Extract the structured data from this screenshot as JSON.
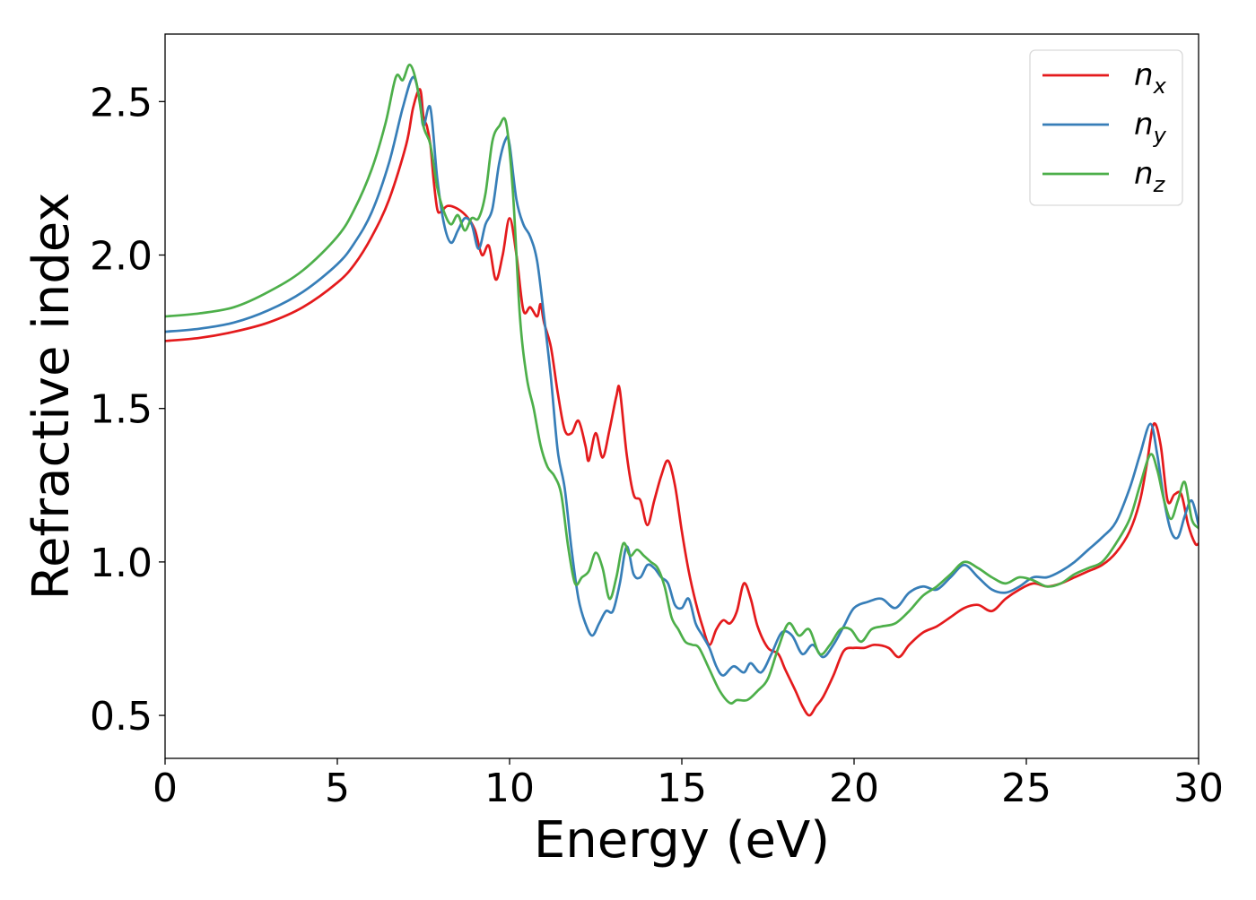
{
  "chart_data": {
    "type": "line",
    "title": "",
    "xlabel": "Energy (eV)",
    "ylabel": "Refractive index",
    "xlim": [
      0,
      30
    ],
    "ylim": [
      0.36,
      2.72
    ],
    "xticks": [
      0,
      5,
      10,
      15,
      20,
      25,
      30
    ],
    "yticks": [
      0.5,
      1.0,
      1.5,
      2.0,
      2.5
    ],
    "xtick_labels": [
      "0",
      "5",
      "10",
      "15",
      "20",
      "25",
      "30"
    ],
    "ytick_labels": [
      "0.5",
      "1.0",
      "1.5",
      "2.0",
      "2.5"
    ],
    "grid": false,
    "legend_position": "top-right",
    "series": [
      {
        "name": "n",
        "subscript": "x",
        "color": "#e41a1c",
        "points": [
          [
            0,
            1.72
          ],
          [
            1,
            1.73
          ],
          [
            2,
            1.75
          ],
          [
            3,
            1.78
          ],
          [
            4,
            1.83
          ],
          [
            5,
            1.91
          ],
          [
            5.5,
            1.97
          ],
          [
            6,
            2.06
          ],
          [
            6.5,
            2.18
          ],
          [
            7,
            2.36
          ],
          [
            7.2,
            2.48
          ],
          [
            7.4,
            2.54
          ],
          [
            7.5,
            2.45
          ],
          [
            7.6,
            2.42
          ],
          [
            7.7,
            2.36
          ],
          [
            7.8,
            2.24
          ],
          [
            7.9,
            2.15
          ],
          [
            8.0,
            2.14
          ],
          [
            8.2,
            2.16
          ],
          [
            8.5,
            2.15
          ],
          [
            8.8,
            2.12
          ],
          [
            9.0,
            2.08
          ],
          [
            9.2,
            2.0
          ],
          [
            9.4,
            2.03
          ],
          [
            9.6,
            1.92
          ],
          [
            9.8,
            2.0
          ],
          [
            10.0,
            2.12
          ],
          [
            10.2,
            2.0
          ],
          [
            10.4,
            1.82
          ],
          [
            10.6,
            1.83
          ],
          [
            10.8,
            1.8
          ],
          [
            10.9,
            1.84
          ],
          [
            11.0,
            1.78
          ],
          [
            11.2,
            1.7
          ],
          [
            11.4,
            1.55
          ],
          [
            11.6,
            1.43
          ],
          [
            11.8,
            1.42
          ],
          [
            12.0,
            1.46
          ],
          [
            12.2,
            1.38
          ],
          [
            12.3,
            1.33
          ],
          [
            12.5,
            1.42
          ],
          [
            12.7,
            1.34
          ],
          [
            12.9,
            1.43
          ],
          [
            13.1,
            1.54
          ],
          [
            13.2,
            1.56
          ],
          [
            13.4,
            1.35
          ],
          [
            13.6,
            1.22
          ],
          [
            13.8,
            1.2
          ],
          [
            14.0,
            1.12
          ],
          [
            14.2,
            1.2
          ],
          [
            14.4,
            1.28
          ],
          [
            14.6,
            1.33
          ],
          [
            14.8,
            1.25
          ],
          [
            15.0,
            1.1
          ],
          [
            15.2,
            0.97
          ],
          [
            15.4,
            0.87
          ],
          [
            15.6,
            0.79
          ],
          [
            15.8,
            0.73
          ],
          [
            16.0,
            0.78
          ],
          [
            16.2,
            0.81
          ],
          [
            16.4,
            0.8
          ],
          [
            16.6,
            0.84
          ],
          [
            16.8,
            0.93
          ],
          [
            17.0,
            0.88
          ],
          [
            17.2,
            0.79
          ],
          [
            17.5,
            0.72
          ],
          [
            17.8,
            0.7
          ],
          [
            18.0,
            0.65
          ],
          [
            18.3,
            0.58
          ],
          [
            18.5,
            0.53
          ],
          [
            18.7,
            0.5
          ],
          [
            18.9,
            0.53
          ],
          [
            19.1,
            0.56
          ],
          [
            19.4,
            0.63
          ],
          [
            19.7,
            0.71
          ],
          [
            20.0,
            0.72
          ],
          [
            20.3,
            0.72
          ],
          [
            20.6,
            0.73
          ],
          [
            21.0,
            0.72
          ],
          [
            21.3,
            0.69
          ],
          [
            21.6,
            0.73
          ],
          [
            22.0,
            0.77
          ],
          [
            22.4,
            0.79
          ],
          [
            22.8,
            0.82
          ],
          [
            23.2,
            0.85
          ],
          [
            23.6,
            0.86
          ],
          [
            24.0,
            0.84
          ],
          [
            24.4,
            0.88
          ],
          [
            24.8,
            0.91
          ],
          [
            25.2,
            0.93
          ],
          [
            25.6,
            0.92
          ],
          [
            26.0,
            0.93
          ],
          [
            26.4,
            0.95
          ],
          [
            26.8,
            0.97
          ],
          [
            27.2,
            0.99
          ],
          [
            27.6,
            1.03
          ],
          [
            28.0,
            1.1
          ],
          [
            28.3,
            1.2
          ],
          [
            28.5,
            1.32
          ],
          [
            28.7,
            1.45
          ],
          [
            28.9,
            1.38
          ],
          [
            29.1,
            1.2
          ],
          [
            29.3,
            1.22
          ],
          [
            29.5,
            1.22
          ],
          [
            29.7,
            1.12
          ],
          [
            29.9,
            1.06
          ],
          [
            30.0,
            1.06
          ]
        ]
      },
      {
        "name": "n",
        "subscript": "y",
        "color": "#377eb8",
        "points": [
          [
            0,
            1.75
          ],
          [
            1,
            1.76
          ],
          [
            2,
            1.78
          ],
          [
            3,
            1.82
          ],
          [
            4,
            1.88
          ],
          [
            5,
            1.97
          ],
          [
            5.5,
            2.04
          ],
          [
            6,
            2.14
          ],
          [
            6.5,
            2.3
          ],
          [
            6.9,
            2.48
          ],
          [
            7.2,
            2.58
          ],
          [
            7.4,
            2.5
          ],
          [
            7.5,
            2.42
          ],
          [
            7.7,
            2.48
          ],
          [
            7.9,
            2.25
          ],
          [
            8.1,
            2.1
          ],
          [
            8.3,
            2.04
          ],
          [
            8.5,
            2.08
          ],
          [
            8.7,
            2.12
          ],
          [
            8.9,
            2.1
          ],
          [
            9.1,
            2.02
          ],
          [
            9.3,
            2.1
          ],
          [
            9.5,
            2.15
          ],
          [
            9.7,
            2.3
          ],
          [
            9.9,
            2.38
          ],
          [
            10.0,
            2.36
          ],
          [
            10.2,
            2.18
          ],
          [
            10.4,
            2.1
          ],
          [
            10.6,
            2.06
          ],
          [
            10.8,
            1.98
          ],
          [
            11.0,
            1.8
          ],
          [
            11.2,
            1.6
          ],
          [
            11.4,
            1.36
          ],
          [
            11.6,
            1.24
          ],
          [
            11.8,
            1.04
          ],
          [
            12.0,
            0.88
          ],
          [
            12.2,
            0.8
          ],
          [
            12.4,
            0.76
          ],
          [
            12.6,
            0.8
          ],
          [
            12.8,
            0.84
          ],
          [
            13.0,
            0.84
          ],
          [
            13.2,
            0.93
          ],
          [
            13.4,
            1.05
          ],
          [
            13.6,
            0.96
          ],
          [
            13.8,
            0.95
          ],
          [
            14.0,
            0.99
          ],
          [
            14.2,
            0.98
          ],
          [
            14.4,
            0.95
          ],
          [
            14.6,
            0.93
          ],
          [
            14.8,
            0.86
          ],
          [
            15.0,
            0.85
          ],
          [
            15.2,
            0.88
          ],
          [
            15.4,
            0.8
          ],
          [
            15.6,
            0.76
          ],
          [
            15.8,
            0.72
          ],
          [
            16.0,
            0.66
          ],
          [
            16.2,
            0.63
          ],
          [
            16.5,
            0.66
          ],
          [
            16.8,
            0.64
          ],
          [
            17.0,
            0.67
          ],
          [
            17.3,
            0.64
          ],
          [
            17.6,
            0.7
          ],
          [
            17.9,
            0.77
          ],
          [
            18.2,
            0.76
          ],
          [
            18.5,
            0.7
          ],
          [
            18.8,
            0.73
          ],
          [
            19.1,
            0.69
          ],
          [
            19.4,
            0.73
          ],
          [
            19.7,
            0.79
          ],
          [
            20.0,
            0.85
          ],
          [
            20.4,
            0.87
          ],
          [
            20.8,
            0.88
          ],
          [
            21.2,
            0.85
          ],
          [
            21.6,
            0.9
          ],
          [
            22.0,
            0.92
          ],
          [
            22.4,
            0.91
          ],
          [
            22.8,
            0.95
          ],
          [
            23.2,
            0.99
          ],
          [
            23.6,
            0.95
          ],
          [
            24.0,
            0.91
          ],
          [
            24.4,
            0.9
          ],
          [
            24.8,
            0.92
          ],
          [
            25.2,
            0.95
          ],
          [
            25.6,
            0.95
          ],
          [
            26.0,
            0.97
          ],
          [
            26.4,
            1.0
          ],
          [
            26.8,
            1.04
          ],
          [
            27.2,
            1.08
          ],
          [
            27.6,
            1.13
          ],
          [
            28.0,
            1.24
          ],
          [
            28.3,
            1.35
          ],
          [
            28.6,
            1.45
          ],
          [
            28.8,
            1.35
          ],
          [
            29.0,
            1.2
          ],
          [
            29.2,
            1.1
          ],
          [
            29.4,
            1.08
          ],
          [
            29.6,
            1.15
          ],
          [
            29.8,
            1.2
          ],
          [
            30.0,
            1.12
          ]
        ]
      },
      {
        "name": "n",
        "subscript": "z",
        "color": "#4daf4a",
        "points": [
          [
            0,
            1.8
          ],
          [
            1,
            1.81
          ],
          [
            2,
            1.83
          ],
          [
            3,
            1.88
          ],
          [
            4,
            1.95
          ],
          [
            5,
            2.06
          ],
          [
            5.5,
            2.15
          ],
          [
            6,
            2.28
          ],
          [
            6.4,
            2.43
          ],
          [
            6.7,
            2.58
          ],
          [
            6.9,
            2.57
          ],
          [
            7.1,
            2.62
          ],
          [
            7.3,
            2.56
          ],
          [
            7.5,
            2.42
          ],
          [
            7.7,
            2.36
          ],
          [
            7.9,
            2.22
          ],
          [
            8.1,
            2.14
          ],
          [
            8.3,
            2.1
          ],
          [
            8.5,
            2.13
          ],
          [
            8.7,
            2.08
          ],
          [
            8.9,
            2.12
          ],
          [
            9.1,
            2.12
          ],
          [
            9.3,
            2.2
          ],
          [
            9.5,
            2.37
          ],
          [
            9.7,
            2.42
          ],
          [
            9.9,
            2.43
          ],
          [
            10.1,
            2.2
          ],
          [
            10.3,
            1.8
          ],
          [
            10.5,
            1.6
          ],
          [
            10.7,
            1.5
          ],
          [
            10.9,
            1.38
          ],
          [
            11.1,
            1.31
          ],
          [
            11.3,
            1.28
          ],
          [
            11.5,
            1.22
          ],
          [
            11.7,
            1.05
          ],
          [
            11.9,
            0.93
          ],
          [
            12.1,
            0.95
          ],
          [
            12.3,
            0.97
          ],
          [
            12.5,
            1.03
          ],
          [
            12.7,
            0.98
          ],
          [
            12.9,
            0.88
          ],
          [
            13.1,
            0.95
          ],
          [
            13.3,
            1.06
          ],
          [
            13.5,
            1.02
          ],
          [
            13.7,
            1.04
          ],
          [
            13.9,
            1.02
          ],
          [
            14.1,
            1.0
          ],
          [
            14.3,
            0.98
          ],
          [
            14.5,
            0.92
          ],
          [
            14.7,
            0.82
          ],
          [
            14.9,
            0.78
          ],
          [
            15.1,
            0.74
          ],
          [
            15.3,
            0.73
          ],
          [
            15.5,
            0.72
          ],
          [
            15.8,
            0.65
          ],
          [
            16.1,
            0.58
          ],
          [
            16.4,
            0.54
          ],
          [
            16.6,
            0.55
          ],
          [
            16.9,
            0.55
          ],
          [
            17.2,
            0.58
          ],
          [
            17.5,
            0.62
          ],
          [
            17.8,
            0.72
          ],
          [
            18.1,
            0.8
          ],
          [
            18.4,
            0.76
          ],
          [
            18.7,
            0.78
          ],
          [
            19.0,
            0.7
          ],
          [
            19.3,
            0.73
          ],
          [
            19.6,
            0.78
          ],
          [
            19.9,
            0.78
          ],
          [
            20.2,
            0.74
          ],
          [
            20.5,
            0.78
          ],
          [
            20.8,
            0.79
          ],
          [
            21.2,
            0.8
          ],
          [
            21.6,
            0.84
          ],
          [
            22.0,
            0.89
          ],
          [
            22.4,
            0.92
          ],
          [
            22.8,
            0.96
          ],
          [
            23.2,
            1.0
          ],
          [
            23.6,
            0.98
          ],
          [
            24.0,
            0.95
          ],
          [
            24.4,
            0.93
          ],
          [
            24.8,
            0.95
          ],
          [
            25.2,
            0.94
          ],
          [
            25.6,
            0.92
          ],
          [
            26.0,
            0.93
          ],
          [
            26.4,
            0.96
          ],
          [
            26.8,
            0.98
          ],
          [
            27.2,
            1.0
          ],
          [
            27.6,
            1.06
          ],
          [
            28.0,
            1.14
          ],
          [
            28.3,
            1.25
          ],
          [
            28.6,
            1.35
          ],
          [
            28.8,
            1.3
          ],
          [
            29.0,
            1.2
          ],
          [
            29.2,
            1.14
          ],
          [
            29.4,
            1.2
          ],
          [
            29.6,
            1.26
          ],
          [
            29.8,
            1.14
          ],
          [
            30.0,
            1.11
          ]
        ]
      }
    ]
  }
}
